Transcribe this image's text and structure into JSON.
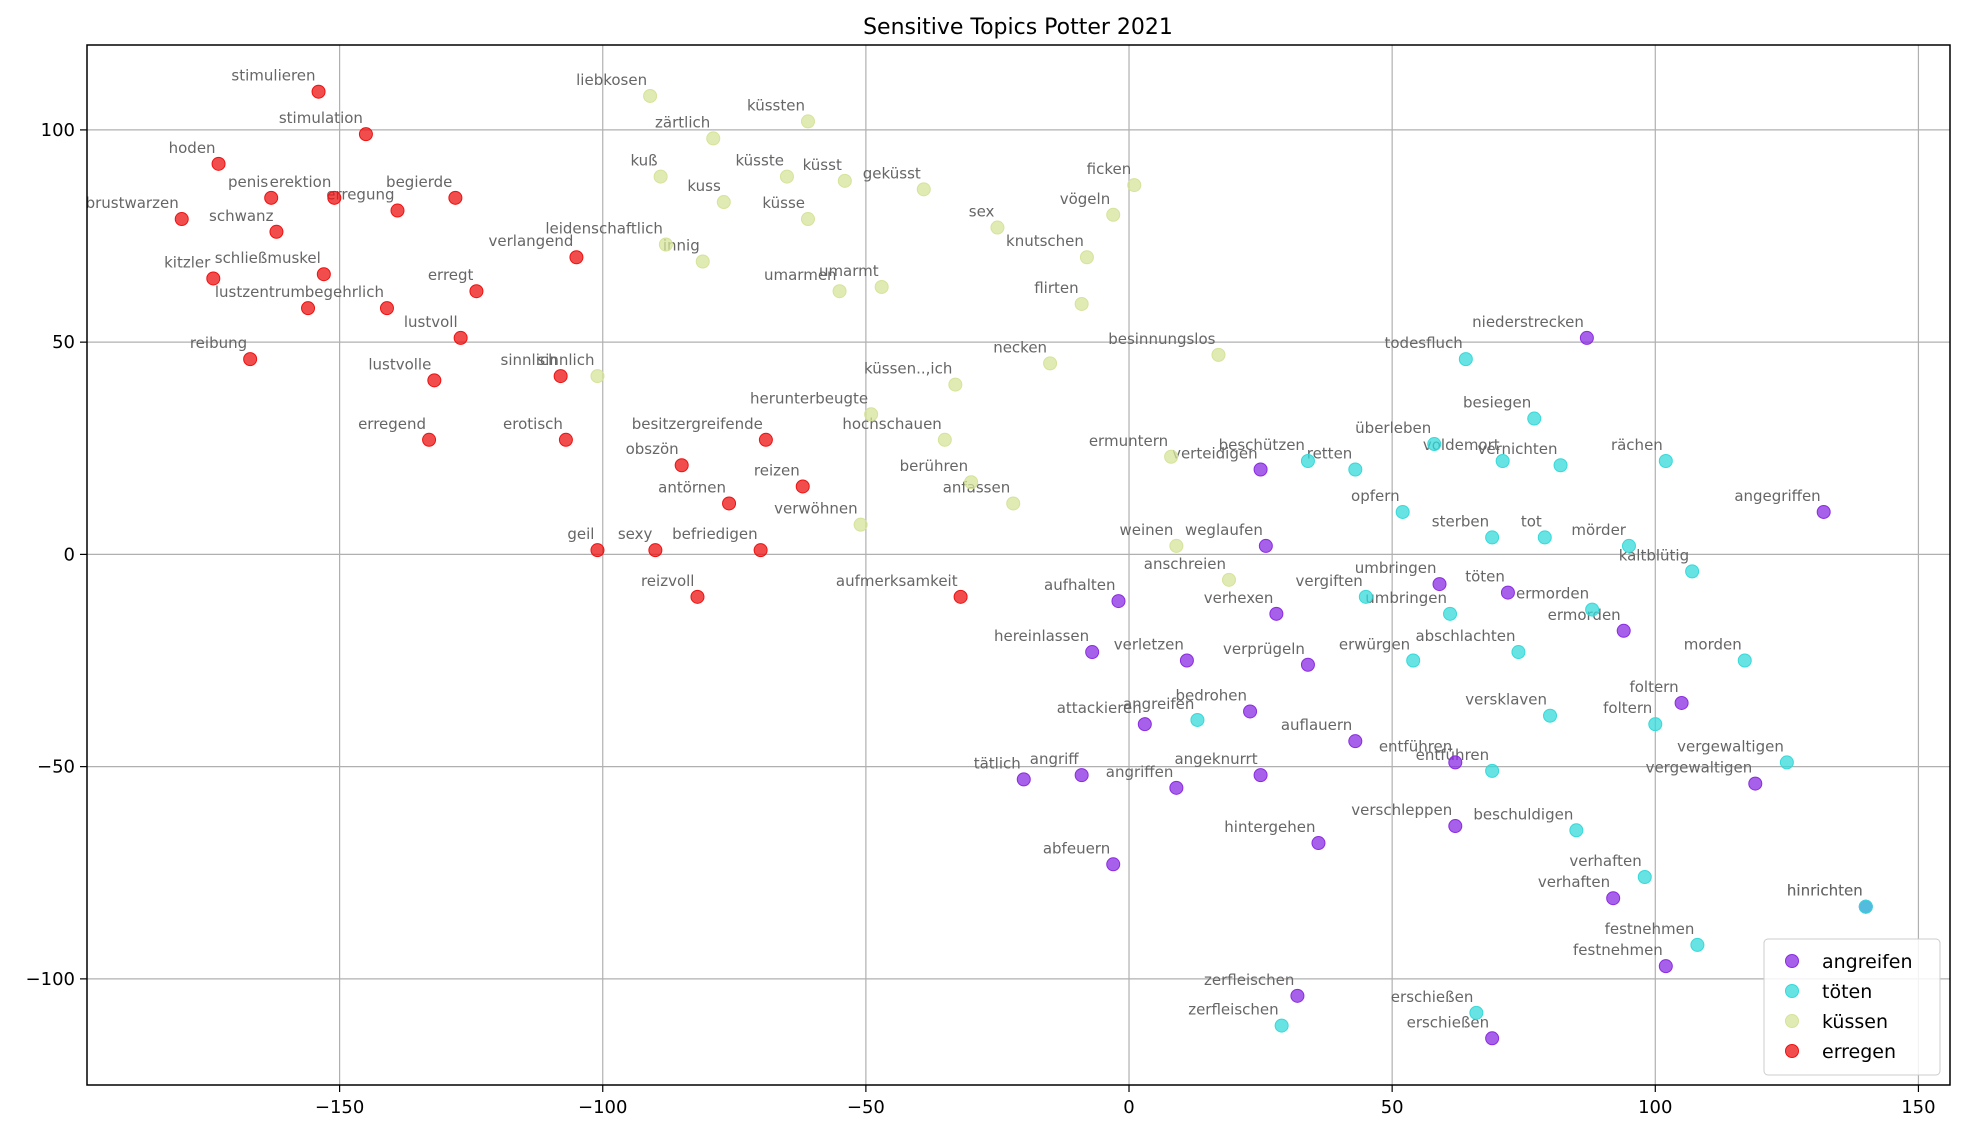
{
  "chart_data": {
    "type": "scatter",
    "title": "Sensitive Topics Potter 2021",
    "xlabel": "",
    "ylabel": "",
    "xlim": [
      -198,
      156
    ],
    "ylim": [
      -125,
      120
    ],
    "xticks": [
      -150,
      -100,
      -50,
      0,
      50,
      100,
      150
    ],
    "yticks": [
      -100,
      -50,
      0,
      50,
      100
    ],
    "grid": true,
    "legend_position": "bottom-right",
    "label_color": "#666666",
    "series": [
      {
        "name": "angreifen",
        "color": "#8a2be2",
        "points": [
          {
            "label": "niederstrecken",
            "x": 87,
            "y": 51
          },
          {
            "label": "verteidigen",
            "x": 25,
            "y": 20
          },
          {
            "label": "angegriffen",
            "x": 132,
            "y": 10
          },
          {
            "label": "weglaufen",
            "x": 26,
            "y": 2
          },
          {
            "label": "umbringen",
            "x": 59,
            "y": -7
          },
          {
            "label": "töten",
            "x": 72,
            "y": -9
          },
          {
            "label": "aufhalten",
            "x": -2,
            "y": -11
          },
          {
            "label": "verhexen",
            "x": 28,
            "y": -14
          },
          {
            "label": "ermorden",
            "x": 94,
            "y": -18
          },
          {
            "label": "hereinlassen",
            "x": -7,
            "y": -23
          },
          {
            "label": "verletzen",
            "x": 11,
            "y": -25
          },
          {
            "label": "verprügeln",
            "x": 34,
            "y": -26
          },
          {
            "label": "foltern",
            "x": 105,
            "y": -35
          },
          {
            "label": "bedrohen",
            "x": 23,
            "y": -37
          },
          {
            "label": "attackieren",
            "x": 3,
            "y": -40
          },
          {
            "label": "auflauern",
            "x": 43,
            "y": -44
          },
          {
            "label": "entführen",
            "x": 62,
            "y": -49
          },
          {
            "label": "tätlich",
            "x": -20,
            "y": -53
          },
          {
            "label": "angriff",
            "x": -9,
            "y": -52
          },
          {
            "label": "angeknurrt",
            "x": 25,
            "y": -52
          },
          {
            "label": "angriffen",
            "x": 9,
            "y": -55
          },
          {
            "label": "vergewaltigen",
            "x": 119,
            "y": -54
          },
          {
            "label": "verschleppen",
            "x": 62,
            "y": -64
          },
          {
            "label": "hintergehen",
            "x": 36,
            "y": -68
          },
          {
            "label": "abfeuern",
            "x": -3,
            "y": -73
          },
          {
            "label": "verhaften",
            "x": 92,
            "y": -81
          },
          {
            "label": "festnehmen",
            "x": 102,
            "y": -97
          },
          {
            "label": "zerfleischen",
            "x": 32,
            "y": -104
          },
          {
            "label": "erschießen",
            "x": 69,
            "y": -114
          },
          {
            "label": "hinrichten",
            "x": 140,
            "y": -83
          }
        ]
      },
      {
        "name": "töten",
        "color": "#36d9d9",
        "points": [
          {
            "label": "todesfluch",
            "x": 64,
            "y": 46
          },
          {
            "label": "besiegen",
            "x": 77,
            "y": 32
          },
          {
            "label": "überleben",
            "x": 58,
            "y": 26
          },
          {
            "label": "voldemort",
            "x": 71,
            "y": 22
          },
          {
            "label": "vernichten",
            "x": 82,
            "y": 21
          },
          {
            "label": "rächen",
            "x": 102,
            "y": 22
          },
          {
            "label": "beschützen",
            "x": 34,
            "y": 22
          },
          {
            "label": "retten",
            "x": 43,
            "y": 20
          },
          {
            "label": "opfern",
            "x": 52,
            "y": 10
          },
          {
            "label": "sterben",
            "x": 69,
            "y": 4
          },
          {
            "label": "tot",
            "x": 79,
            "y": 4
          },
          {
            "label": "mörder",
            "x": 95,
            "y": 2
          },
          {
            "label": "kaltblütig",
            "x": 107,
            "y": -4
          },
          {
            "label": "vergiften",
            "x": 45,
            "y": -10
          },
          {
            "label": "umbringen",
            "x": 61,
            "y": -14
          },
          {
            "label": "ermorden",
            "x": 88,
            "y": -13
          },
          {
            "label": "abschlachten",
            "x": 74,
            "y": -23
          },
          {
            "label": "erwürgen",
            "x": 54,
            "y": -25
          },
          {
            "label": "morden",
            "x": 117,
            "y": -25
          },
          {
            "label": "angreifen",
            "x": 13,
            "y": -39
          },
          {
            "label": "versklaven",
            "x": 80,
            "y": -38
          },
          {
            "label": "foltern",
            "x": 100,
            "y": -40
          },
          {
            "label": "vergewaltigen",
            "x": 125,
            "y": -49
          },
          {
            "label": "entführen",
            "x": 69,
            "y": -51
          },
          {
            "label": "beschuldigen",
            "x": 85,
            "y": -65
          },
          {
            "label": "verhaften",
            "x": 98,
            "y": -76
          },
          {
            "label": "festnehmen",
            "x": 108,
            "y": -92
          },
          {
            "label": "zerfleischen",
            "x": 29,
            "y": -111
          },
          {
            "label": "erschießen",
            "x": 66,
            "y": -108
          },
          {
            "label": "hinrichten",
            "x": 140,
            "y": -83
          }
        ]
      },
      {
        "name": "küssen",
        "color": "#d5e39a",
        "points": [
          {
            "label": "liebkosen",
            "x": -91,
            "y": 108
          },
          {
            "label": "küssten",
            "x": -61,
            "y": 102
          },
          {
            "label": "zärtlich",
            "x": -79,
            "y": 98
          },
          {
            "label": "kuß",
            "x": -89,
            "y": 89
          },
          {
            "label": "küsste",
            "x": -65,
            "y": 89
          },
          {
            "label": "küsst",
            "x": -54,
            "y": 88
          },
          {
            "label": "geküsst",
            "x": -39,
            "y": 86
          },
          {
            "label": "kuss",
            "x": -77,
            "y": 83
          },
          {
            "label": "ficken",
            "x": 1,
            "y": 87
          },
          {
            "label": "vögeln",
            "x": -3,
            "y": 80
          },
          {
            "label": "küsse",
            "x": -61,
            "y": 79
          },
          {
            "label": "sex",
            "x": -25,
            "y": 77
          },
          {
            "label": "leidenschaftlich",
            "x": -88,
            "y": 73
          },
          {
            "label": "innig",
            "x": -81,
            "y": 69
          },
          {
            "label": "knutschen",
            "x": -8,
            "y": 70
          },
          {
            "label": "umarmen",
            "x": -55,
            "y": 62
          },
          {
            "label": "umarmt",
            "x": -47,
            "y": 63
          },
          {
            "label": "flirten",
            "x": -9,
            "y": 59
          },
          {
            "label": "necken",
            "x": -15,
            "y": 45
          },
          {
            "label": "besinnungslos",
            "x": 17,
            "y": 47
          },
          {
            "label": "sinnlich",
            "x": -101,
            "y": 42
          },
          {
            "label": "küssen..,ich",
            "x": -33,
            "y": 40
          },
          {
            "label": "herunterbeugte",
            "x": -49,
            "y": 33
          },
          {
            "label": "hochschauen",
            "x": -35,
            "y": 27
          },
          {
            "label": "ermuntern",
            "x": 8,
            "y": 23
          },
          {
            "label": "berühren",
            "x": -30,
            "y": 17
          },
          {
            "label": "anfassen",
            "x": -22,
            "y": 12
          },
          {
            "label": "verwöhnen",
            "x": -51,
            "y": 7
          },
          {
            "label": "weinen",
            "x": 9,
            "y": 2
          },
          {
            "label": "anschreien",
            "x": 19,
            "y": -6
          }
        ]
      },
      {
        "name": "erregen",
        "color": "#ee1111",
        "points": [
          {
            "label": "stimulieren",
            "x": -154,
            "y": 109
          },
          {
            "label": "stimulation",
            "x": -145,
            "y": 99
          },
          {
            "label": "hoden",
            "x": -173,
            "y": 92
          },
          {
            "label": "penis",
            "x": -163,
            "y": 84
          },
          {
            "label": "erektion",
            "x": -151,
            "y": 84
          },
          {
            "label": "begierde",
            "x": -128,
            "y": 84
          },
          {
            "label": "erregung",
            "x": -139,
            "y": 81
          },
          {
            "label": "brustwarzen",
            "x": -180,
            "y": 79
          },
          {
            "label": "schwanz",
            "x": -162,
            "y": 76
          },
          {
            "label": "verlangend",
            "x": -105,
            "y": 70
          },
          {
            "label": "kitzler",
            "x": -174,
            "y": 65
          },
          {
            "label": "schließmuskel",
            "x": -153,
            "y": 66
          },
          {
            "label": "erregt",
            "x": -124,
            "y": 62
          },
          {
            "label": "lustzentrum",
            "x": -156,
            "y": 58
          },
          {
            "label": "begehrlich",
            "x": -141,
            "y": 58
          },
          {
            "label": "lustvoll",
            "x": -127,
            "y": 51
          },
          {
            "label": "reibung",
            "x": -167,
            "y": 46
          },
          {
            "label": "sinnlich",
            "x": -108,
            "y": 42
          },
          {
            "label": "lustvolle",
            "x": -132,
            "y": 41
          },
          {
            "label": "erregend",
            "x": -133,
            "y": 27
          },
          {
            "label": "erotisch",
            "x": -107,
            "y": 27
          },
          {
            "label": "besitzergreifende",
            "x": -69,
            "y": 27
          },
          {
            "label": "obszön",
            "x": -85,
            "y": 21
          },
          {
            "label": "reizen",
            "x": -62,
            "y": 16
          },
          {
            "label": "antörnen",
            "x": -76,
            "y": 12
          },
          {
            "label": "geil",
            "x": -101,
            "y": 1
          },
          {
            "label": "sexy",
            "x": -90,
            "y": 1
          },
          {
            "label": "befriedigen",
            "x": -70,
            "y": 1
          },
          {
            "label": "reizvoll",
            "x": -82,
            "y": -10
          },
          {
            "label": "aufmerksamkeit",
            "x": -32,
            "y": -10
          }
        ]
      }
    ]
  }
}
